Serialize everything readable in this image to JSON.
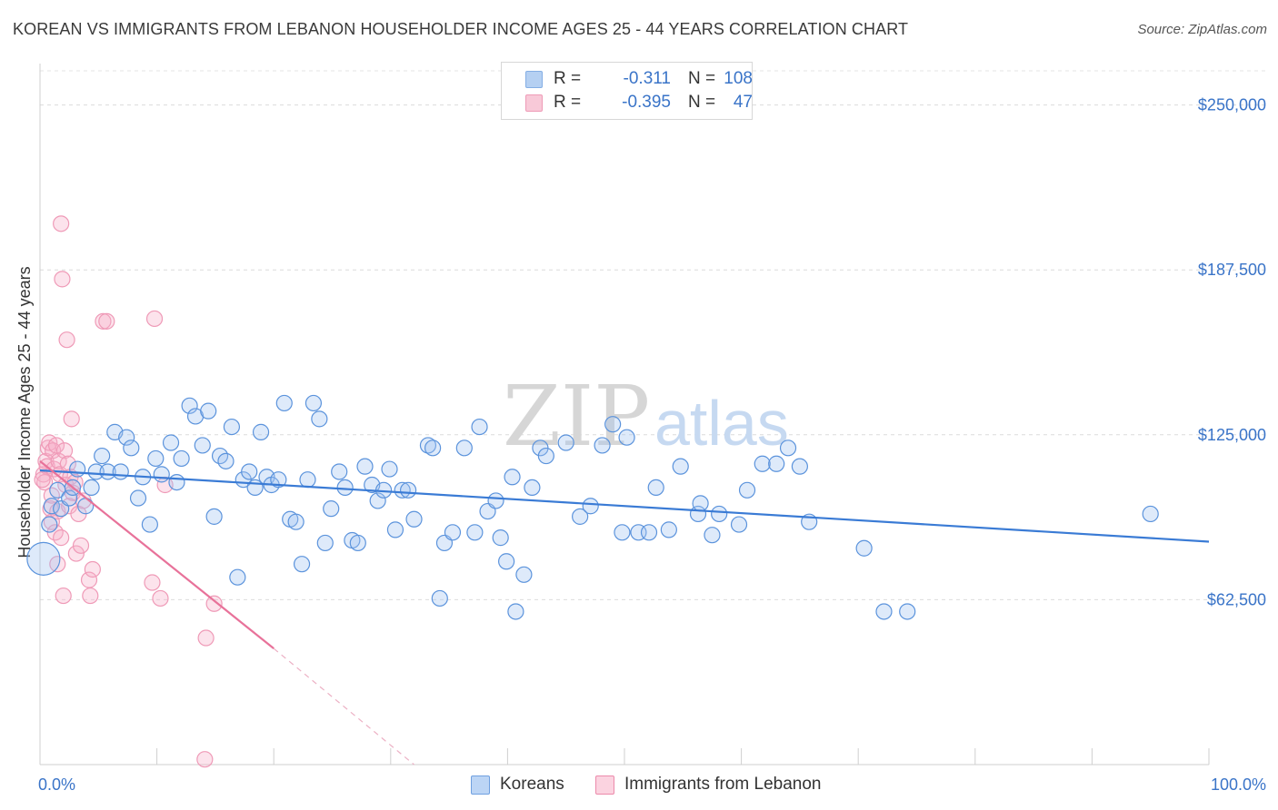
{
  "title": "KOREAN VS IMMIGRANTS FROM LEBANON HOUSEHOLDER INCOME AGES 25 - 44 YEARS CORRELATION CHART",
  "source": "Source: ZipAtlas.com",
  "watermark": {
    "zip": "ZIP",
    "atlas": "atlas"
  },
  "legend": {
    "r_label": "R =",
    "n_label": "N =",
    "rows": [
      {
        "r": "-0.311",
        "n": "108",
        "color": "#a9c8f0",
        "border": "#6fa0e0"
      },
      {
        "r": "-0.395",
        "n": "47",
        "color": "#f7c0d2",
        "border": "#ec8aab"
      }
    ]
  },
  "bottom_legend": [
    {
      "label": "Koreans",
      "color": "#bcd5f5",
      "border": "#6fa0e0"
    },
    {
      "label": "Immigrants from Lebanon",
      "color": "#fbd3e0",
      "border": "#ec8aab"
    }
  ],
  "chart_data": {
    "type": "scatter",
    "title": "KOREAN VS IMMIGRANTS FROM LEBANON HOUSEHOLDER INCOME AGES 25 - 44 YEARS CORRELATION CHART",
    "xlabel": "",
    "ylabel": "Householder Income Ages 25 - 44 years",
    "xlim": [
      0,
      100
    ],
    "ylim": [
      0,
      265000
    ],
    "x_tick_labels": [
      "0.0%",
      "100.0%"
    ],
    "y_ticks": [
      62500,
      125000,
      187500,
      250000
    ],
    "y_tick_labels": [
      "$62,500",
      "$125,000",
      "$187,500",
      "$250,000"
    ],
    "grid": true,
    "colors": {
      "koreans": "#3a7bd5",
      "lebanon": "#e8729a"
    },
    "series": [
      {
        "name": "Koreans",
        "r": -0.311,
        "n": 108,
        "trend": {
          "x": [
            0,
            100
          ],
          "y": [
            111500,
            84500
          ]
        },
        "points": [
          {
            "x": 0.3,
            "y": 78000,
            "big": true
          },
          {
            "x": 0.8,
            "y": 91000
          },
          {
            "x": 1.0,
            "y": 98000
          },
          {
            "x": 1.5,
            "y": 104000
          },
          {
            "x": 1.8,
            "y": 97000
          },
          {
            "x": 2.5,
            "y": 101000
          },
          {
            "x": 2.8,
            "y": 105000
          },
          {
            "x": 3.2,
            "y": 112000
          },
          {
            "x": 3.9,
            "y": 98000
          },
          {
            "x": 4.4,
            "y": 105000
          },
          {
            "x": 4.8,
            "y": 111000
          },
          {
            "x": 5.3,
            "y": 117000
          },
          {
            "x": 5.8,
            "y": 111000
          },
          {
            "x": 6.4,
            "y": 126000
          },
          {
            "x": 6.9,
            "y": 111000
          },
          {
            "x": 7.4,
            "y": 124000
          },
          {
            "x": 7.8,
            "y": 120000
          },
          {
            "x": 8.4,
            "y": 101000
          },
          {
            "x": 8.8,
            "y": 109000
          },
          {
            "x": 9.4,
            "y": 91000
          },
          {
            "x": 9.9,
            "y": 116000
          },
          {
            "x": 10.4,
            "y": 110000
          },
          {
            "x": 11.2,
            "y": 122000
          },
          {
            "x": 11.7,
            "y": 107000
          },
          {
            "x": 12.1,
            "y": 116000
          },
          {
            "x": 12.8,
            "y": 136000
          },
          {
            "x": 13.3,
            "y": 132000
          },
          {
            "x": 13.9,
            "y": 121000
          },
          {
            "x": 14.4,
            "y": 134000
          },
          {
            "x": 14.9,
            "y": 94000
          },
          {
            "x": 15.4,
            "y": 117000
          },
          {
            "x": 15.9,
            "y": 115000
          },
          {
            "x": 16.4,
            "y": 128000
          },
          {
            "x": 16.9,
            "y": 71000
          },
          {
            "x": 17.4,
            "y": 108000
          },
          {
            "x": 17.9,
            "y": 111000
          },
          {
            "x": 18.4,
            "y": 105000
          },
          {
            "x": 18.9,
            "y": 126000
          },
          {
            "x": 19.4,
            "y": 109000
          },
          {
            "x": 19.8,
            "y": 106000
          },
          {
            "x": 20.4,
            "y": 108000
          },
          {
            "x": 20.9,
            "y": 137000
          },
          {
            "x": 21.4,
            "y": 93000
          },
          {
            "x": 21.9,
            "y": 92000
          },
          {
            "x": 22.4,
            "y": 76000
          },
          {
            "x": 22.9,
            "y": 108000
          },
          {
            "x": 23.4,
            "y": 137000
          },
          {
            "x": 23.9,
            "y": 131000
          },
          {
            "x": 24.4,
            "y": 84000
          },
          {
            "x": 24.9,
            "y": 97000
          },
          {
            "x": 25.6,
            "y": 111000
          },
          {
            "x": 26.1,
            "y": 105000
          },
          {
            "x": 26.7,
            "y": 85000
          },
          {
            "x": 27.2,
            "y": 84000
          },
          {
            "x": 27.8,
            "y": 113000
          },
          {
            "x": 28.4,
            "y": 106000
          },
          {
            "x": 28.9,
            "y": 100000
          },
          {
            "x": 29.4,
            "y": 104000
          },
          {
            "x": 29.9,
            "y": 112000
          },
          {
            "x": 30.4,
            "y": 89000
          },
          {
            "x": 31.0,
            "y": 104000
          },
          {
            "x": 31.5,
            "y": 104000
          },
          {
            "x": 32.0,
            "y": 93000
          },
          {
            "x": 33.2,
            "y": 121000
          },
          {
            "x": 33.6,
            "y": 120000
          },
          {
            "x": 34.2,
            "y": 63000
          },
          {
            "x": 34.6,
            "y": 84000
          },
          {
            "x": 35.3,
            "y": 88000
          },
          {
            "x": 36.3,
            "y": 120000
          },
          {
            "x": 37.2,
            "y": 88000
          },
          {
            "x": 37.6,
            "y": 128000
          },
          {
            "x": 38.3,
            "y": 96000
          },
          {
            "x": 39.0,
            "y": 100000
          },
          {
            "x": 39.4,
            "y": 86000
          },
          {
            "x": 39.9,
            "y": 77000
          },
          {
            "x": 40.4,
            "y": 109000
          },
          {
            "x": 40.7,
            "y": 58000
          },
          {
            "x": 41.4,
            "y": 72000
          },
          {
            "x": 42.1,
            "y": 105000
          },
          {
            "x": 42.8,
            "y": 120000
          },
          {
            "x": 43.3,
            "y": 117000
          },
          {
            "x": 45.0,
            "y": 122000
          },
          {
            "x": 46.2,
            "y": 94000
          },
          {
            "x": 47.1,
            "y": 98000
          },
          {
            "x": 48.1,
            "y": 121000
          },
          {
            "x": 49.0,
            "y": 129000
          },
          {
            "x": 49.8,
            "y": 88000
          },
          {
            "x": 50.2,
            "y": 124000
          },
          {
            "x": 51.2,
            "y": 88000
          },
          {
            "x": 52.1,
            "y": 88000
          },
          {
            "x": 52.7,
            "y": 105000
          },
          {
            "x": 53.8,
            "y": 89000
          },
          {
            "x": 54.8,
            "y": 113000
          },
          {
            "x": 56.3,
            "y": 95000
          },
          {
            "x": 56.5,
            "y": 99000
          },
          {
            "x": 57.5,
            "y": 87000
          },
          {
            "x": 58.1,
            "y": 95000
          },
          {
            "x": 59.8,
            "y": 91000
          },
          {
            "x": 60.5,
            "y": 104000
          },
          {
            "x": 61.8,
            "y": 114000
          },
          {
            "x": 63.0,
            "y": 114000
          },
          {
            "x": 64.0,
            "y": 120000
          },
          {
            "x": 65.0,
            "y": 113000
          },
          {
            "x": 65.8,
            "y": 92000
          },
          {
            "x": 70.5,
            "y": 82000
          },
          {
            "x": 72.2,
            "y": 58000
          },
          {
            "x": 74.2,
            "y": 58000
          },
          {
            "x": 95.0,
            "y": 95000
          }
        ]
      },
      {
        "name": "Immigrants from Lebanon",
        "r": -0.395,
        "n": 47,
        "trend": {
          "x": [
            0,
            20
          ],
          "y": [
            115000,
            44000
          ]
        },
        "trend_dashed": {
          "x": [
            20,
            32
          ],
          "y": [
            44000,
            0
          ]
        },
        "points": [
          {
            "x": 0.3,
            "y": 110000
          },
          {
            "x": 0.4,
            "y": 107000
          },
          {
            "x": 0.5,
            "y": 115000
          },
          {
            "x": 0.6,
            "y": 113000
          },
          {
            "x": 0.7,
            "y": 120000
          },
          {
            "x": 0.8,
            "y": 122000
          },
          {
            "x": 0.9,
            "y": 97000
          },
          {
            "x": 1.0,
            "y": 102000
          },
          {
            "x": 1.0,
            "y": 92000
          },
          {
            "x": 1.1,
            "y": 119000
          },
          {
            "x": 1.2,
            "y": 112000
          },
          {
            "x": 1.3,
            "y": 88000
          },
          {
            "x": 1.4,
            "y": 121000
          },
          {
            "x": 1.5,
            "y": 96000
          },
          {
            "x": 1.5,
            "y": 76000
          },
          {
            "x": 1.6,
            "y": 115000
          },
          {
            "x": 1.7,
            "y": 110000
          },
          {
            "x": 1.8,
            "y": 205000
          },
          {
            "x": 1.8,
            "y": 86000
          },
          {
            "x": 1.9,
            "y": 184000
          },
          {
            "x": 2.0,
            "y": 64000
          },
          {
            "x": 2.1,
            "y": 119000
          },
          {
            "x": 2.2,
            "y": 106000
          },
          {
            "x": 2.3,
            "y": 161000
          },
          {
            "x": 2.4,
            "y": 114000
          },
          {
            "x": 2.5,
            "y": 98000
          },
          {
            "x": 2.6,
            "y": 109000
          },
          {
            "x": 2.7,
            "y": 131000
          },
          {
            "x": 2.8,
            "y": 103000
          },
          {
            "x": 3.0,
            "y": 107000
          },
          {
            "x": 3.1,
            "y": 80000
          },
          {
            "x": 3.3,
            "y": 95000
          },
          {
            "x": 3.5,
            "y": 83000
          },
          {
            "x": 3.7,
            "y": 100000
          },
          {
            "x": 4.2,
            "y": 70000
          },
          {
            "x": 4.3,
            "y": 64000
          },
          {
            "x": 4.5,
            "y": 74000
          },
          {
            "x": 5.4,
            "y": 168000
          },
          {
            "x": 5.7,
            "y": 168000
          },
          {
            "x": 9.6,
            "y": 69000
          },
          {
            "x": 9.8,
            "y": 169000
          },
          {
            "x": 10.3,
            "y": 63000
          },
          {
            "x": 10.7,
            "y": 106000
          },
          {
            "x": 14.2,
            "y": 48000
          },
          {
            "x": 14.9,
            "y": 61000
          },
          {
            "x": 14.1,
            "y": 2000
          },
          {
            "x": 0.2,
            "y": 108000
          }
        ]
      }
    ]
  }
}
